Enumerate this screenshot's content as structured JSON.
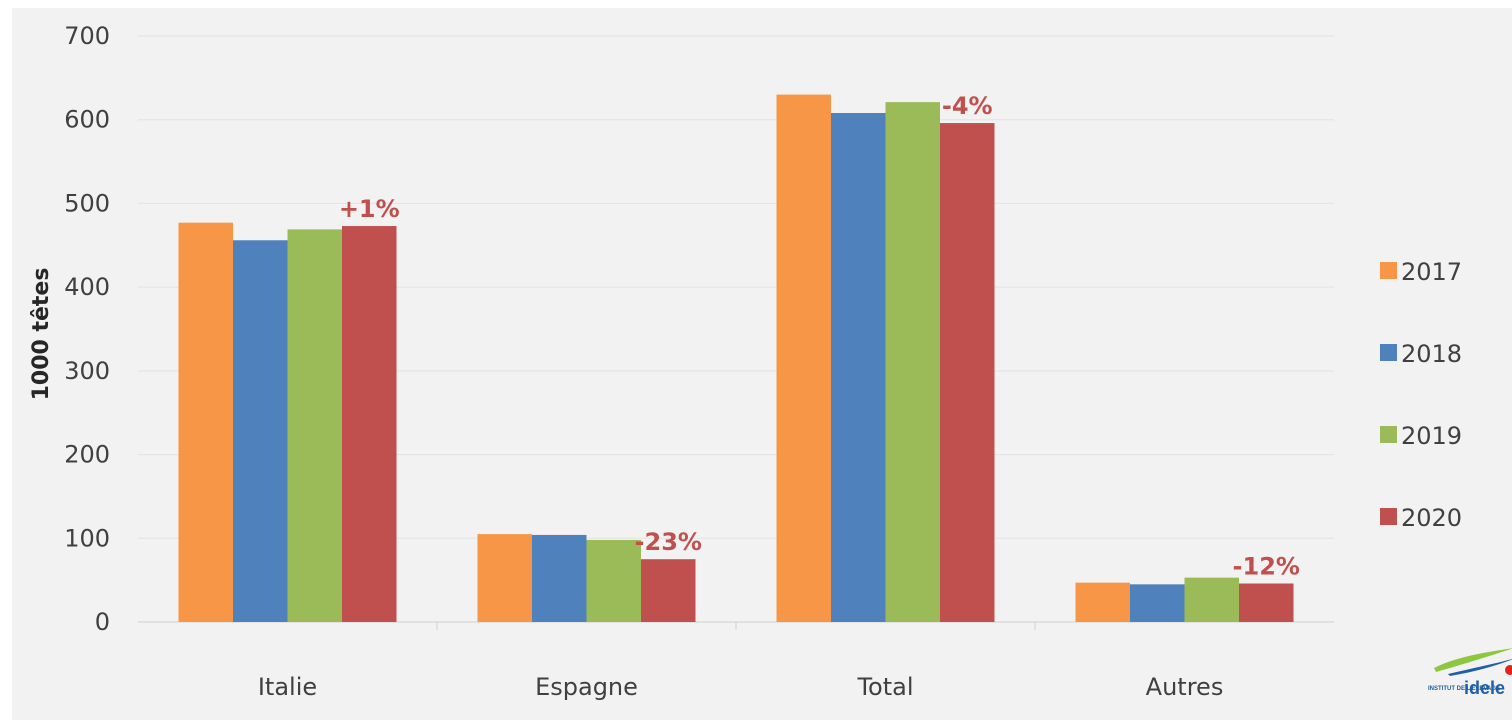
{
  "chart_data": {
    "type": "bar",
    "categories": [
      "Italie",
      "Espagne",
      "Total",
      "Autres"
    ],
    "series": [
      {
        "name": "2017",
        "color": "#f79646",
        "values": [
          477,
          105,
          630,
          47
        ]
      },
      {
        "name": "2018",
        "color": "#4f81bd",
        "values": [
          456,
          104,
          608,
          45
        ]
      },
      {
        "name": "2019",
        "color": "#9bbb59",
        "values": [
          469,
          98,
          621,
          53
        ]
      },
      {
        "name": "2020",
        "color": "#c0504d",
        "values": [
          473,
          75,
          596,
          46
        ]
      }
    ],
    "annotations": [
      "+1%",
      "-23%",
      "-4%",
      "-12%"
    ],
    "ylabel": "1000 têtes",
    "xlabel": "",
    "title": "",
    "ylim": [
      0,
      700
    ],
    "yticks": [
      0,
      100,
      200,
      300,
      400,
      500,
      600,
      700
    ],
    "grid": "horizontal",
    "legend_position": "right"
  },
  "logo": {
    "small_text": "INSTITUT DE L'ELEVAGE",
    "big_text": "idele",
    "icon": "idele-logo-swoosh"
  }
}
